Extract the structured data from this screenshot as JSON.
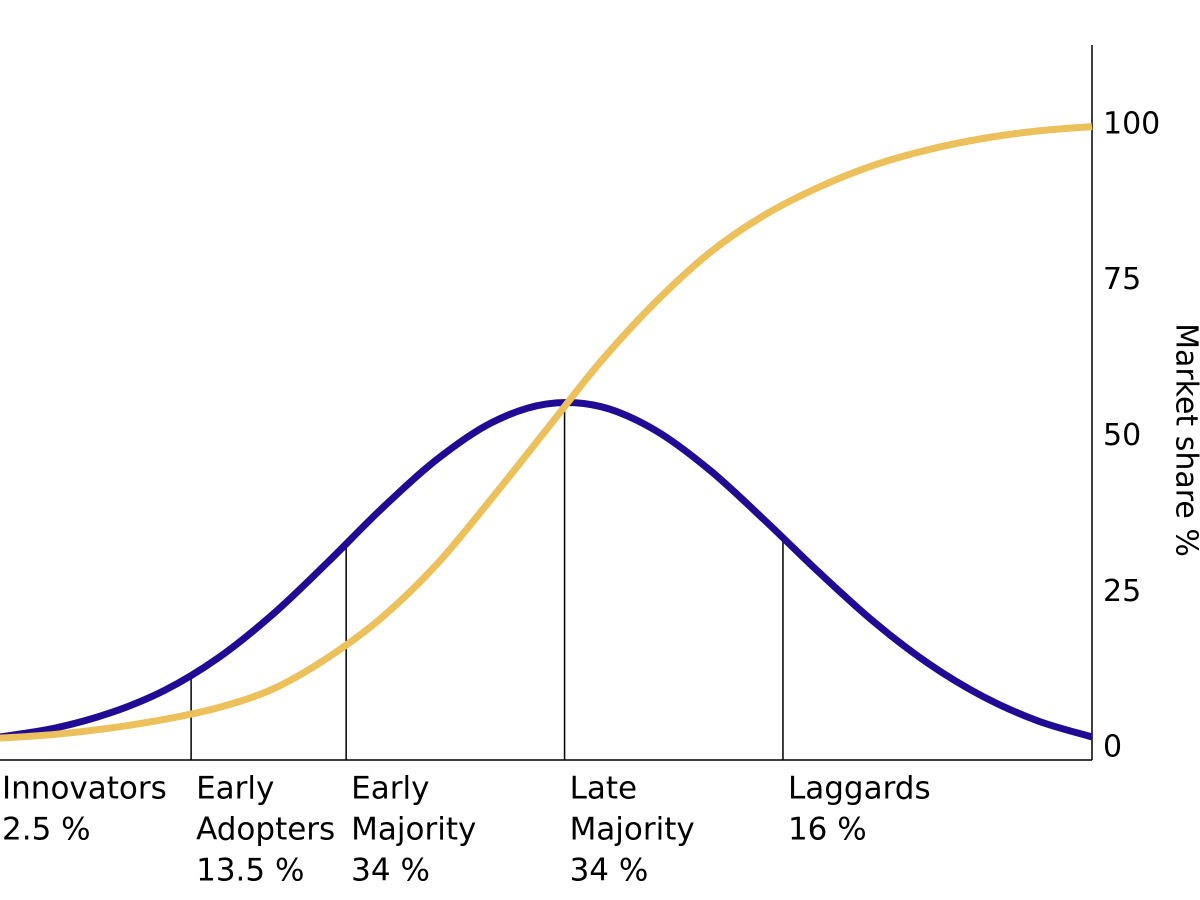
{
  "chart_data": {
    "type": "line",
    "y_axis_label": "Market share %",
    "x": [
      0,
      5,
      10,
      15,
      20,
      25,
      30,
      35,
      40,
      45,
      50,
      55,
      60,
      65,
      70,
      75,
      80,
      85,
      90,
      95,
      100
    ],
    "xlim": [
      0,
      100
    ],
    "ylim": [
      -1.9,
      112.8
    ],
    "yticks": [
      0,
      25,
      50,
      75,
      100
    ],
    "y_axis_side": "right",
    "series": [
      {
        "color": "#200c94",
        "values": [
          1.8,
          3.2,
          5.6,
          9.2,
          14.5,
          21.5,
          29.8,
          38.5,
          46.3,
          52.2,
          55.2,
          54.8,
          51.0,
          44.6,
          36.6,
          28.2,
          20.3,
          13.6,
          8.3,
          4.4,
          1.8
        ]
      },
      {
        "color": "#ecc05a",
        "values": [
          1.6,
          2.2,
          3.2,
          4.6,
          6.5,
          9.5,
          14.5,
          21,
          29.5,
          40,
          51,
          62,
          71.5,
          79.5,
          85.5,
          90,
          93.5,
          96,
          97.8,
          99,
          99.7
        ]
      }
    ],
    "dividers": [
      17.5,
      31.7,
      51.7,
      71.7
    ],
    "segments": {
      "names": [
        [
          "Innovators"
        ],
        [
          "Early",
          "Adopters"
        ],
        [
          "Early",
          "Majority"
        ],
        [
          "Late",
          "Majority"
        ],
        [
          "Laggards"
        ]
      ],
      "values": [
        2.5,
        13.5,
        34,
        34,
        16
      ],
      "value_labels": [
        "2.5 %",
        "13.5 %",
        "34 %",
        "34 %",
        "16 %"
      ]
    }
  }
}
